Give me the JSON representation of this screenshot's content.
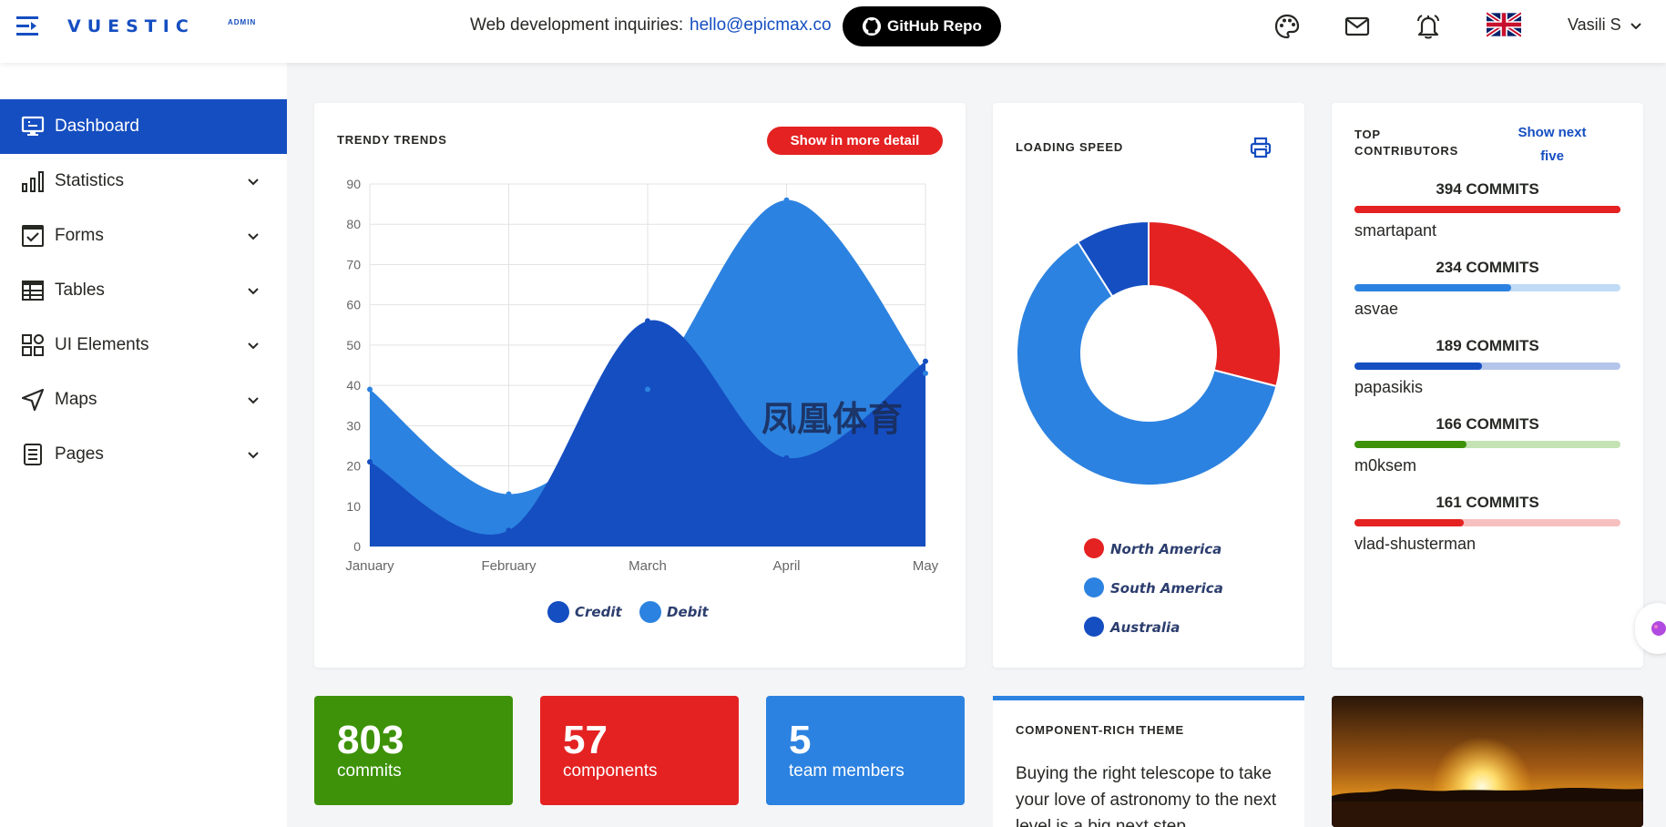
{
  "header": {
    "logo_text": "VUESTIC",
    "logo_badge": "ADMIN",
    "inquiry_label": "Web development inquiries:",
    "inquiry_email": "hello@epicmax.co",
    "github_label": "GitHub Repo",
    "user_name": "Vasili S",
    "icons": [
      "menu-icon",
      "palette-icon",
      "mail-icon",
      "bell-icon",
      "uk-flag-icon",
      "chevron-down-icon"
    ]
  },
  "sidebar": {
    "items": [
      {
        "label": "Dashboard",
        "icon": "monitor-icon",
        "active": true
      },
      {
        "label": "Statistics",
        "icon": "bar-chart-icon"
      },
      {
        "label": "Forms",
        "icon": "checkbox-icon"
      },
      {
        "label": "Tables",
        "icon": "table-icon"
      },
      {
        "label": "UI Elements",
        "icon": "grid-icon"
      },
      {
        "label": "Maps",
        "icon": "navigation-icon"
      },
      {
        "label": "Pages",
        "icon": "document-icon"
      }
    ]
  },
  "trends_card": {
    "title": "TRENDY TRENDS",
    "button_label": "Show in more detail"
  },
  "loading_card": {
    "title": "LOADING SPEED",
    "icon": "printer-icon"
  },
  "contributors_card": {
    "title_line1": "TOP",
    "title_line2": "CONTRIBUTORS",
    "show_next_line1": "Show next",
    "show_next_line2": "five",
    "list": [
      {
        "commits": "394 COMMITS",
        "name": "smartapant",
        "fraction": 1.0,
        "color": "#e42222",
        "track": "#e42222"
      },
      {
        "commits": "234 COMMITS",
        "name": "asvae",
        "fraction": 0.59,
        "color": "#2c82e0",
        "track": "#c0dbf6"
      },
      {
        "commits": "189 COMMITS",
        "name": "papasikis",
        "fraction": 0.48,
        "color": "#154ec1",
        "track": "#b3c5e9"
      },
      {
        "commits": "166 COMMITS",
        "name": "m0ksem",
        "fraction": 0.42,
        "color": "#3d9209",
        "track": "#c4e2b4"
      },
      {
        "commits": "161 COMMITS",
        "name": "vlad-shusterman",
        "fraction": 0.41,
        "color": "#e42222",
        "track": "#f7c0c0"
      }
    ]
  },
  "stats": [
    {
      "value": "803",
      "label": "commits",
      "color": "#3d9209"
    },
    {
      "value": "57",
      "label": "components",
      "color": "#e42222"
    },
    {
      "value": "5",
      "label": "team members",
      "color": "#2c82e0"
    }
  ],
  "theme_card": {
    "title": "COMPONENT-RICH THEME",
    "text": "Buying the right telescope to take your love of astronomy to the next level is a big next step."
  },
  "watermark": "凤凰体育",
  "chart_data": [
    {
      "type": "area",
      "x": [
        "January",
        "February",
        "March",
        "April",
        "May"
      ],
      "ylim": [
        0,
        90
      ],
      "yticks": [
        0,
        10,
        20,
        30,
        40,
        50,
        60,
        70,
        80,
        90
      ],
      "grid": true,
      "legend_position": "bottom",
      "series": [
        {
          "name": "Debit",
          "values": [
            39,
            13,
            39,
            86,
            43
          ],
          "color": "#2c82e0"
        },
        {
          "name": "Credit",
          "values": [
            21,
            4,
            56,
            22,
            46
          ],
          "color": "#154ec1"
        }
      ]
    },
    {
      "type": "pie",
      "donut": true,
      "legend_position": "bottom",
      "labels": [
        "North America",
        "South America",
        "Australia"
      ],
      "values": [
        29,
        62,
        9
      ],
      "colors": [
        "#e42222",
        "#2c82e0",
        "#154ec1"
      ]
    }
  ]
}
